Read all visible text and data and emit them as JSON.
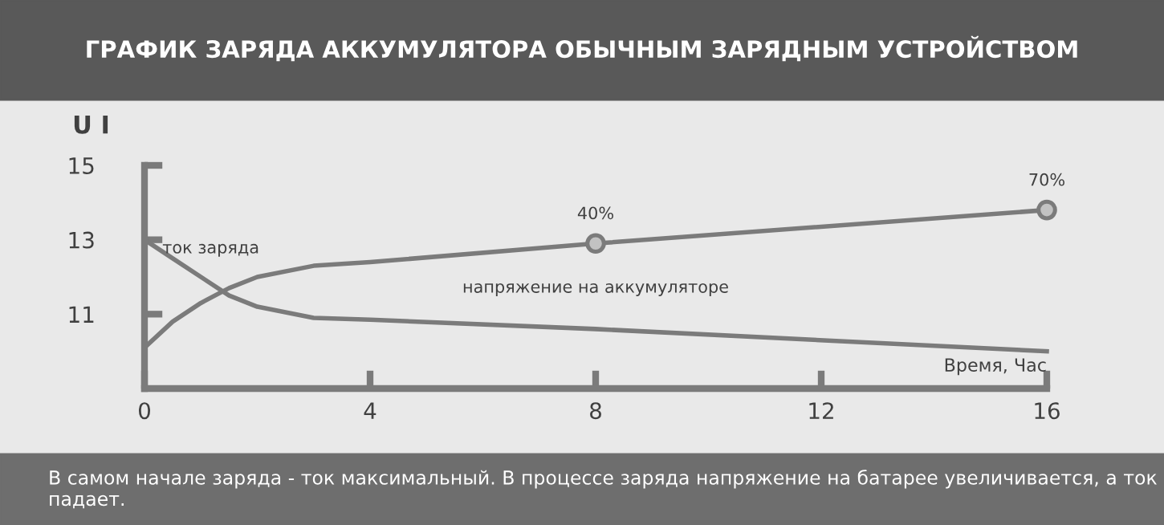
{
  "chart_data": {
    "type": "line",
    "title": "ГРАФИК ЗАРЯДА АККУМУЛЯТОРА ОБЫЧНЫМ ЗАРЯДНЫМ УСТРОЙСТВОМ",
    "xlabel": "Время, Час",
    "ylabel": "U I",
    "xlim": [
      0,
      16
    ],
    "xticks": [
      0,
      4,
      8,
      12,
      16
    ],
    "ylim": [
      9,
      15
    ],
    "yticks": [
      11,
      13,
      15
    ],
    "grid": false,
    "series": [
      {
        "color": "#7b7b7b",
        "x": [
          0,
          0.5,
          1,
          1.5,
          2,
          3,
          4,
          8,
          16
        ],
        "values": [
          10.1,
          10.8,
          11.3,
          11.7,
          12.0,
          12.3,
          12.4,
          12.9,
          13.8
        ]
      },
      {
        "color": "#7b7b7b",
        "x": [
          0,
          0.5,
          1,
          1.5,
          2,
          3,
          4,
          8,
          16
        ],
        "values": [
          13.0,
          12.5,
          12.0,
          11.5,
          11.2,
          10.9,
          10.85,
          10.6,
          10.0
        ]
      },
      {
        "type": "scatter",
        "marker": "circle",
        "color": "#c2c2c2",
        "x": [
          8,
          16
        ],
        "values": [
          12.9,
          13.8
        ]
      }
    ],
    "annotations": [
      {
        "text": "ток заряда",
        "x": 0,
        "y": 13.0
      },
      {
        "text": "напряжение на аккумуляторе",
        "x": 8,
        "y": 12.9
      },
      {
        "text": "40%",
        "x": 8,
        "y": 12.9
      },
      {
        "text": "70%",
        "x": 16,
        "y": 13.8
      },
      "В самом начале заряда - ток максимальный. В процессе заряда напряжение на батарее увеличивается, а ток падает."
    ]
  }
}
